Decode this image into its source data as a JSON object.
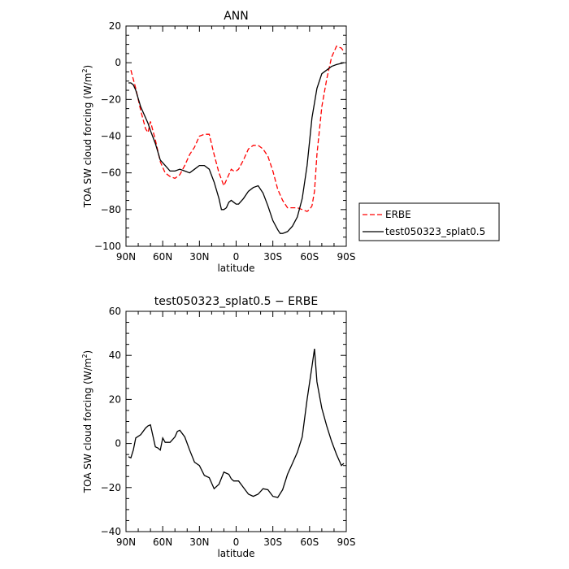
{
  "chart_data": [
    {
      "type": "line",
      "title": "ANN",
      "xlabel": "latitude",
      "ylabel": "TOA SW cloud forcing (W/m",
      "ylabel_sup": "2",
      "ylabel_end": ")",
      "xlim": [
        90,
        -90
      ],
      "ylim": [
        -100,
        20
      ],
      "x_ticks": [
        90,
        60,
        30,
        0,
        -30,
        -60,
        -90
      ],
      "x_tick_labels": [
        "90N",
        "60N",
        "30N",
        "0",
        "30S",
        "60S",
        "90S"
      ],
      "y_ticks": [
        20,
        0,
        -20,
        -40,
        -60,
        -80,
        -100
      ],
      "y_tick_labels": [
        "20",
        "0",
        "−20",
        "−40",
        "−60",
        "−80",
        "−100"
      ],
      "legend": "right",
      "series": [
        {
          "name": "ERBE",
          "color": "#ff0000",
          "dash": true,
          "x": [
            86,
            82,
            78,
            74,
            72,
            70,
            66,
            62,
            58,
            54,
            50,
            46,
            42,
            38,
            34,
            30,
            26,
            22,
            18,
            14,
            10,
            6,
            4,
            2,
            0,
            -2,
            -6,
            -10,
            -14,
            -18,
            -22,
            -26,
            -30,
            -34,
            -38,
            -42,
            -46,
            -50,
            -54,
            -58,
            -60,
            -62,
            -64,
            -66,
            -70,
            -74,
            -78,
            -82,
            -86,
            -88
          ],
          "values": [
            -4,
            -14,
            -26,
            -36,
            -38,
            -32,
            -42,
            -54,
            -60,
            -62,
            -63,
            -61,
            -56,
            -50,
            -46,
            -40,
            -39,
            -39,
            -50,
            -60,
            -67,
            -61,
            -58,
            -59,
            -59,
            -58,
            -53,
            -47,
            -45,
            -45,
            -47,
            -51,
            -59,
            -69,
            -75,
            -79,
            -79,
            -79,
            -80,
            -81,
            -80,
            -78,
            -70,
            -50,
            -24,
            -9,
            3,
            9,
            8,
            6
          ]
        },
        {
          "name": "test050323_splat0.5",
          "color": "#000000",
          "dash": false,
          "x": [
            88,
            86,
            84,
            82,
            78,
            74,
            72,
            70,
            66,
            62,
            58,
            54,
            50,
            46,
            42,
            38,
            34,
            30,
            26,
            22,
            18,
            14,
            12,
            10,
            8,
            6,
            4,
            2,
            0,
            -2,
            -6,
            -10,
            -14,
            -18,
            -22,
            -26,
            -30,
            -34,
            -36,
            -38,
            -42,
            -46,
            -50,
            -54,
            -58,
            -62,
            -66,
            -70,
            -74,
            -78,
            -82,
            -88
          ],
          "values": [
            -11,
            -11,
            -12,
            -15,
            -24,
            -30,
            -33,
            -37,
            -44,
            -53,
            -56,
            -59,
            -59,
            -58,
            -59,
            -60,
            -58,
            -56,
            -56,
            -58,
            -65,
            -74,
            -80,
            -80,
            -79,
            -76,
            -75,
            -76,
            -77,
            -77,
            -74,
            -70,
            -68,
            -67,
            -71,
            -78,
            -86,
            -91,
            -93,
            -93,
            -92,
            -89,
            -84,
            -74,
            -56,
            -30,
            -14,
            -6,
            -4,
            -2,
            -1,
            0
          ]
        }
      ]
    },
    {
      "type": "line",
      "title": "test050323_splat0.5 − ERBE",
      "xlabel": "latitude",
      "ylabel": "TOA SW cloud forcing (W/m",
      "ylabel_sup": "2",
      "ylabel_end": ")",
      "xlim": [
        90,
        -90
      ],
      "ylim": [
        -40,
        60
      ],
      "x_ticks": [
        90,
        60,
        30,
        0,
        -30,
        -60,
        -90
      ],
      "x_tick_labels": [
        "90N",
        "60N",
        "30N",
        "0",
        "30S",
        "60S",
        "90S"
      ],
      "y_ticks": [
        60,
        40,
        20,
        0,
        -20,
        -40
      ],
      "y_tick_labels": [
        "60",
        "40",
        "20",
        "0",
        "−20",
        "−40"
      ],
      "series": [
        {
          "color": "#000000",
          "dash": false,
          "x": [
            88,
            86,
            84,
            82,
            78,
            74,
            72,
            70,
            66,
            64,
            62,
            60,
            58,
            54,
            50,
            48,
            46,
            42,
            38,
            34,
            30,
            26,
            22,
            18,
            14,
            10,
            6,
            4,
            2,
            0,
            -2,
            -6,
            -10,
            -14,
            -18,
            -22,
            -26,
            -30,
            -34,
            -38,
            -42,
            -46,
            -50,
            -54,
            -58,
            -62,
            -64,
            -66,
            -70,
            -74,
            -78,
            -82,
            -86,
            -88
          ],
          "values": [
            -6,
            -6.5,
            -3,
            2.5,
            4,
            7,
            8,
            8.5,
            -1.5,
            -2,
            -3,
            2.5,
            0.5,
            0.5,
            3,
            5.5,
            6,
            3,
            -3,
            -8.5,
            -10,
            -14.5,
            -15.5,
            -20.5,
            -18.5,
            -13,
            -14,
            -16,
            -17,
            -17,
            -17,
            -20,
            -23,
            -24,
            -23,
            -20.5,
            -21,
            -24,
            -24.5,
            -21,
            -14,
            -9,
            -4,
            3,
            20,
            35,
            43,
            28,
            16,
            8,
            1,
            -5,
            -10,
            -9
          ]
        }
      ]
    }
  ]
}
